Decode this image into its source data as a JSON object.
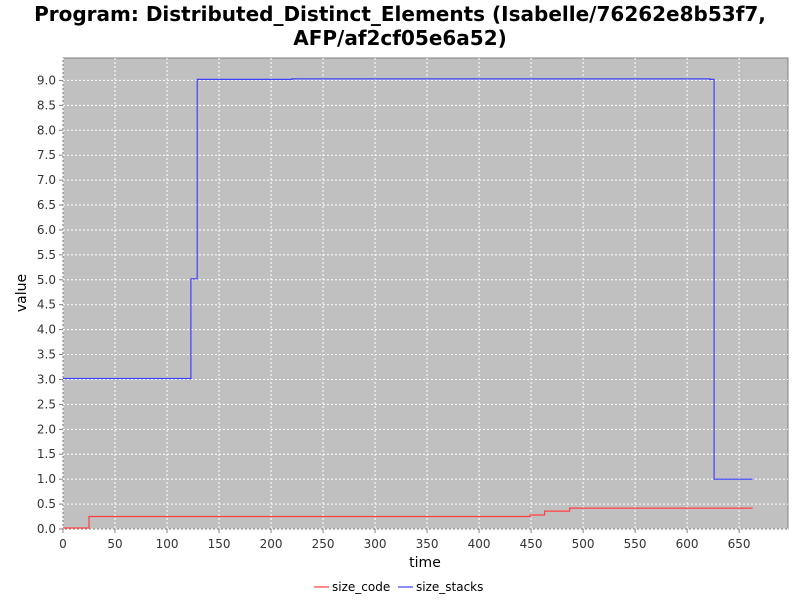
{
  "chart_data": {
    "type": "line",
    "title_lines": [
      "Program: Distributed_Distinct_Elements (Isabelle/76262e8b53f7,",
      "AFP/af2cf05e6a52)"
    ],
    "xlabel": "time",
    "ylabel": "value",
    "xlim": [
      0,
      697
    ],
    "ylim": [
      0,
      9.45
    ],
    "x_ticks": [
      0,
      50,
      100,
      150,
      200,
      250,
      300,
      350,
      400,
      450,
      500,
      550,
      600,
      650
    ],
    "y_ticks": [
      0.0,
      0.5,
      1.0,
      1.5,
      2.0,
      2.5,
      3.0,
      3.5,
      4.0,
      4.5,
      5.0,
      5.5,
      6.0,
      6.5,
      7.0,
      7.5,
      8.0,
      8.5,
      9.0
    ],
    "grid": true,
    "legend_position": "bottom-center",
    "background_color": "#c0c0c0",
    "series": [
      {
        "name": "size_code",
        "color": "#ff4040",
        "step": true,
        "points": [
          [
            0,
            0.02
          ],
          [
            25,
            0.02
          ],
          [
            25,
            0.25
          ],
          [
            449,
            0.25
          ],
          [
            449,
            0.28
          ],
          [
            463,
            0.28
          ],
          [
            463,
            0.36
          ],
          [
            487,
            0.36
          ],
          [
            487,
            0.42
          ],
          [
            663,
            0.42
          ]
        ]
      },
      {
        "name": "size_stacks",
        "color": "#4040ff",
        "step": true,
        "points": [
          [
            0,
            3.02
          ],
          [
            123,
            3.02
          ],
          [
            123,
            5.02
          ],
          [
            129,
            5.02
          ],
          [
            129,
            9.02
          ],
          [
            220,
            9.02
          ],
          [
            220,
            9.03
          ],
          [
            622,
            9.03
          ],
          [
            622,
            9.02
          ],
          [
            626,
            9.02
          ],
          [
            626,
            1.0
          ],
          [
            663,
            1.0
          ]
        ]
      }
    ]
  }
}
